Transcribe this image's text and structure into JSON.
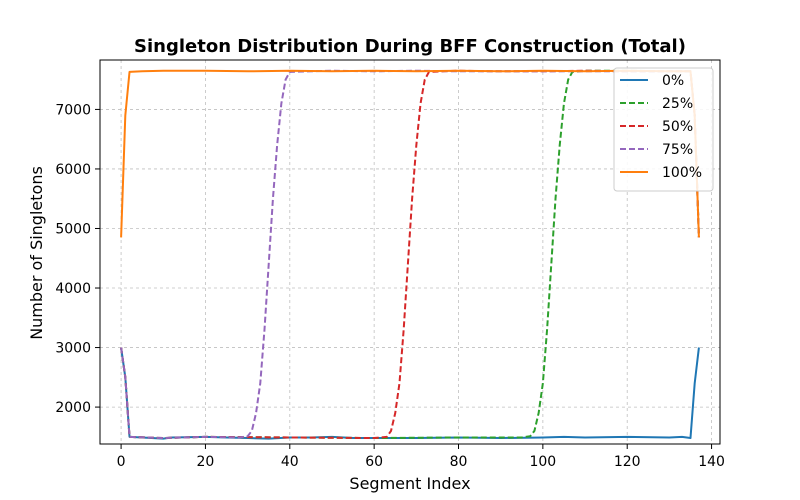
{
  "chart_data": {
    "type": "line",
    "title": "Singleton Distribution During BFF Construction (Total)",
    "xlabel": "Segment Index",
    "ylabel": "Number of Singletons",
    "xlim": [
      -5,
      142
    ],
    "ylim": [
      1380,
      7830
    ],
    "xticks": [
      0,
      20,
      40,
      60,
      80,
      100,
      120,
      140
    ],
    "yticks": [
      2000,
      3000,
      4000,
      5000,
      6000,
      7000
    ],
    "grid": true,
    "legend_position": "top-right",
    "series": [
      {
        "name": "0%",
        "color": "#1f77b4",
        "style": "solid",
        "points": [
          [
            0,
            3000
          ],
          [
            1,
            2500
          ],
          [
            2,
            1500
          ],
          [
            5,
            1490
          ],
          [
            10,
            1470
          ],
          [
            12,
            1490
          ],
          [
            20,
            1500
          ],
          [
            25,
            1490
          ],
          [
            30,
            1480
          ],
          [
            35,
            1470
          ],
          [
            40,
            1490
          ],
          [
            45,
            1490
          ],
          [
            50,
            1500
          ],
          [
            55,
            1480
          ],
          [
            60,
            1480
          ],
          [
            70,
            1480
          ],
          [
            80,
            1490
          ],
          [
            90,
            1480
          ],
          [
            100,
            1490
          ],
          [
            105,
            1500
          ],
          [
            110,
            1490
          ],
          [
            120,
            1500
          ],
          [
            130,
            1490
          ],
          [
            133,
            1500
          ],
          [
            135,
            1480
          ],
          [
            136,
            2400
          ],
          [
            137,
            3000
          ]
        ]
      },
      {
        "name": "25%",
        "color": "#2ca02c",
        "style": "dashed",
        "points": [
          [
            0,
            3000
          ],
          [
            1,
            2500
          ],
          [
            2,
            1500
          ],
          [
            10,
            1480
          ],
          [
            20,
            1500
          ],
          [
            40,
            1490
          ],
          [
            60,
            1480
          ],
          [
            80,
            1490
          ],
          [
            95,
            1490
          ],
          [
            97,
            1510
          ],
          [
            98,
            1600
          ],
          [
            99,
            1900
          ],
          [
            100,
            2400
          ],
          [
            101,
            3300
          ],
          [
            102,
            4400
          ],
          [
            103,
            5500
          ],
          [
            104,
            6400
          ],
          [
            105,
            7100
          ],
          [
            106,
            7500
          ],
          [
            107,
            7630
          ],
          [
            110,
            7650
          ],
          [
            120,
            7650
          ],
          [
            130,
            7640
          ],
          [
            135,
            7640
          ],
          [
            136,
            6900
          ],
          [
            137,
            4850
          ]
        ]
      },
      {
        "name": "50%",
        "color": "#d62728",
        "style": "dashed",
        "points": [
          [
            0,
            3000
          ],
          [
            1,
            2500
          ],
          [
            2,
            1500
          ],
          [
            10,
            1480
          ],
          [
            20,
            1500
          ],
          [
            40,
            1490
          ],
          [
            60,
            1480
          ],
          [
            63,
            1500
          ],
          [
            64,
            1600
          ],
          [
            65,
            1900
          ],
          [
            66,
            2400
          ],
          [
            67,
            3300
          ],
          [
            68,
            4400
          ],
          [
            69,
            5500
          ],
          [
            70,
            6400
          ],
          [
            71,
            7100
          ],
          [
            72,
            7500
          ],
          [
            73,
            7630
          ],
          [
            80,
            7650
          ],
          [
            90,
            7640
          ],
          [
            100,
            7640
          ],
          [
            110,
            7650
          ],
          [
            120,
            7640
          ],
          [
            130,
            7640
          ],
          [
            135,
            7640
          ],
          [
            136,
            6900
          ],
          [
            137,
            4850
          ]
        ]
      },
      {
        "name": "75%",
        "color": "#9467bd",
        "style": "dashed",
        "points": [
          [
            0,
            3000
          ],
          [
            1,
            2500
          ],
          [
            2,
            1500
          ],
          [
            10,
            1480
          ],
          [
            20,
            1500
          ],
          [
            28,
            1490
          ],
          [
            30,
            1510
          ],
          [
            31,
            1600
          ],
          [
            32,
            1900
          ],
          [
            33,
            2400
          ],
          [
            34,
            3300
          ],
          [
            35,
            4400
          ],
          [
            36,
            5500
          ],
          [
            37,
            6400
          ],
          [
            38,
            7100
          ],
          [
            39,
            7500
          ],
          [
            40,
            7630
          ],
          [
            50,
            7650
          ],
          [
            60,
            7640
          ],
          [
            70,
            7650
          ],
          [
            80,
            7640
          ],
          [
            100,
            7640
          ],
          [
            120,
            7640
          ],
          [
            135,
            7640
          ],
          [
            136,
            6900
          ],
          [
            137,
            4850
          ]
        ]
      },
      {
        "name": "100%",
        "color": "#ff7f0e",
        "style": "solid",
        "points": [
          [
            0,
            4850
          ],
          [
            1,
            6900
          ],
          [
            2,
            7630
          ],
          [
            5,
            7640
          ],
          [
            10,
            7650
          ],
          [
            20,
            7650
          ],
          [
            30,
            7640
          ],
          [
            40,
            7650
          ],
          [
            50,
            7640
          ],
          [
            60,
            7650
          ],
          [
            70,
            7640
          ],
          [
            80,
            7650
          ],
          [
            90,
            7640
          ],
          [
            100,
            7650
          ],
          [
            110,
            7640
          ],
          [
            120,
            7650
          ],
          [
            130,
            7640
          ],
          [
            135,
            7640
          ],
          [
            136,
            6900
          ],
          [
            137,
            4850
          ]
        ]
      }
    ]
  }
}
